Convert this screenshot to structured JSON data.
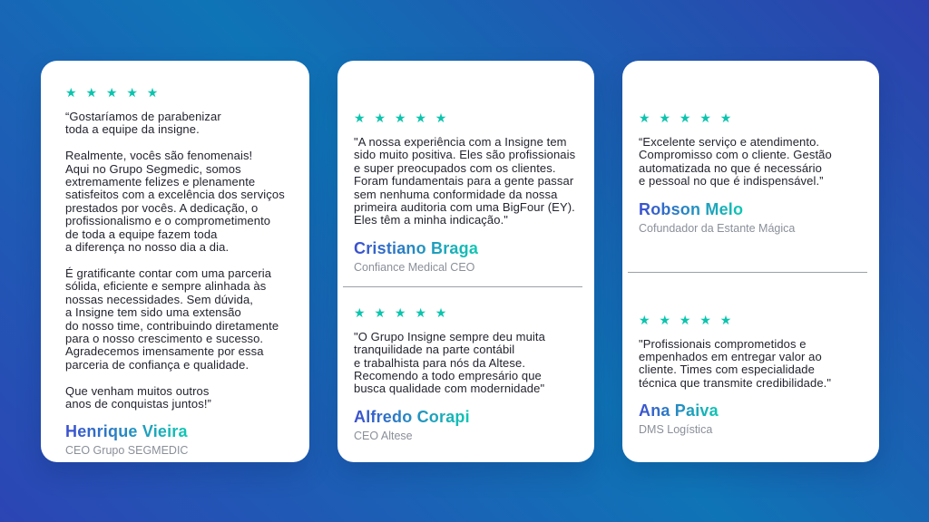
{
  "section": {
    "name": "client-testimonials"
  },
  "theme": {
    "background_corner_color": "#2d42b0",
    "background_center_color": "#0f74b6",
    "card_background": "#ffffff",
    "star_color": "#0bc4ae",
    "name_gradient_start": "#3c4fd0",
    "name_gradient_end": "#0fc8b3",
    "quote_text_color": "#23242e",
    "role_text_color": "#8a8f99"
  },
  "cards": [
    {
      "blocks": [
        {
          "rating": 5,
          "stars": "★ ★ ★ ★ ★",
          "quote": "“Gostaríamos de parabenizar\ntoda a equipe da insigne.\n\nRealmente, vocês são fenomenais!\nAqui no Grupo Segmedic, somos\nextremamente felizes e plenamente\nsatisfeitos com a excelência dos serviços\nprestados por vocês. A dedicação, o\nprofissionalismo e o comprometimento\nde toda a equipe fazem toda\na diferença no nosso dia a dia.\n\nÉ gratificante contar com uma parceria\nsólida, eficiente e sempre alinhada às\nnossas necessidades. Sem dúvida,\na Insigne tem sido uma extensão\ndo nosso time, contribuindo diretamente\npara o nosso crescimento e sucesso.\nAgradecemos imensamente por essa\nparceria de confiança e qualidade.\n\nQue venham muitos outros\nanos de conquistas juntos!”",
          "author": "Henrique Vieira",
          "role": "CEO Grupo SEGMEDIC"
        }
      ]
    },
    {
      "blocks": [
        {
          "rating": 5,
          "stars": "★ ★ ★ ★ ★",
          "quote": "\"A nossa experiência com a Insigne tem\nsido muito positiva. Eles são profissionais\ne super preocupados com os clientes.\nForam fundamentais para a gente passar\nsem nenhuma conformidade da nossa\nprimeira auditoria com uma BigFour (EY).\nEles têm a minha indicação.\"",
          "author": "Cristiano Braga",
          "role": "Confiance Medical CEO"
        },
        {
          "rating": 5,
          "stars": "★ ★ ★ ★ ★",
          "quote": "\"O Grupo Insigne sempre deu muita\ntranquilidade na parte contábil\ne trabalhista para nós da Altese.\nRecomendo a todo empresário que\nbusca qualidade com modernidade\"",
          "author": "Alfredo Corapi",
          "role": "CEO Altese"
        }
      ]
    },
    {
      "blocks": [
        {
          "rating": 5,
          "stars": "★ ★ ★ ★ ★",
          "quote": "“Excelente serviço e atendimento.\nCompromisso com o cliente. Gestão\nautomatizada no que é necessário\ne pessoal no que é indispensável.”",
          "author": "Robson Melo",
          "role": "Cofundador da Estante Mágica"
        },
        {
          "rating": 5,
          "stars": "★ ★ ★ ★ ★",
          "quote": "\"Profissionais comprometidos e\nempenhados em entregar valor ao\ncliente. Times com especialidade\ntécnica que transmite credibilidade.\"",
          "author": "Ana Paiva",
          "role": "DMS Logística"
        }
      ]
    }
  ]
}
